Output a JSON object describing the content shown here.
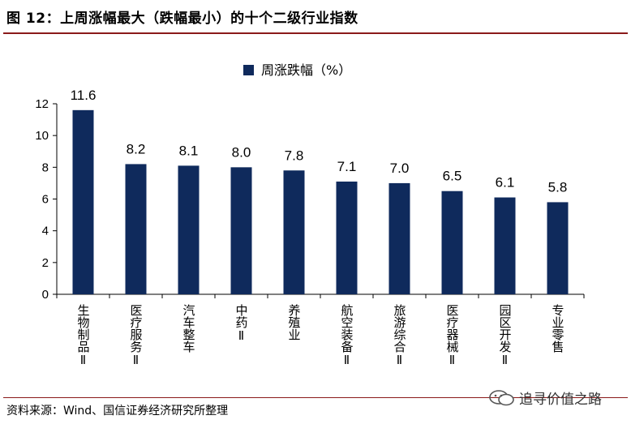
{
  "figure": {
    "title": "图 12：上周涨幅最大（跌幅最小）的十个二级行业指数",
    "source": "资料来源：Wind、国信证券经济研究所整理",
    "watermark": "追寻价值之路"
  },
  "colors": {
    "bar": "#0f2a5c",
    "rule": "#8b1a1a"
  },
  "chart_data": {
    "type": "bar",
    "categories": [
      "生物制品Ⅱ",
      "医疗服务Ⅱ",
      "汽车整车",
      "中药Ⅱ",
      "养殖业",
      "航空装备Ⅱ",
      "旅游综合Ⅱ",
      "医疗器械Ⅱ",
      "园区开发Ⅱ",
      "专业零售"
    ],
    "series": [
      {
        "name": "周涨跌幅（%）",
        "values": [
          11.6,
          8.2,
          8.1,
          8.0,
          7.8,
          7.1,
          7.0,
          6.5,
          6.1,
          5.8
        ]
      }
    ],
    "value_labels": [
      "11.6",
      "8.2",
      "8.1",
      "8.0",
      "7.8",
      "7.1",
      "7.0",
      "6.5",
      "6.1",
      "5.8"
    ],
    "yticks": [
      "0",
      "2",
      "4",
      "6",
      "8",
      "10",
      "12"
    ],
    "ylim": [
      0,
      12
    ],
    "legend_position": "top-center",
    "grid": false
  }
}
